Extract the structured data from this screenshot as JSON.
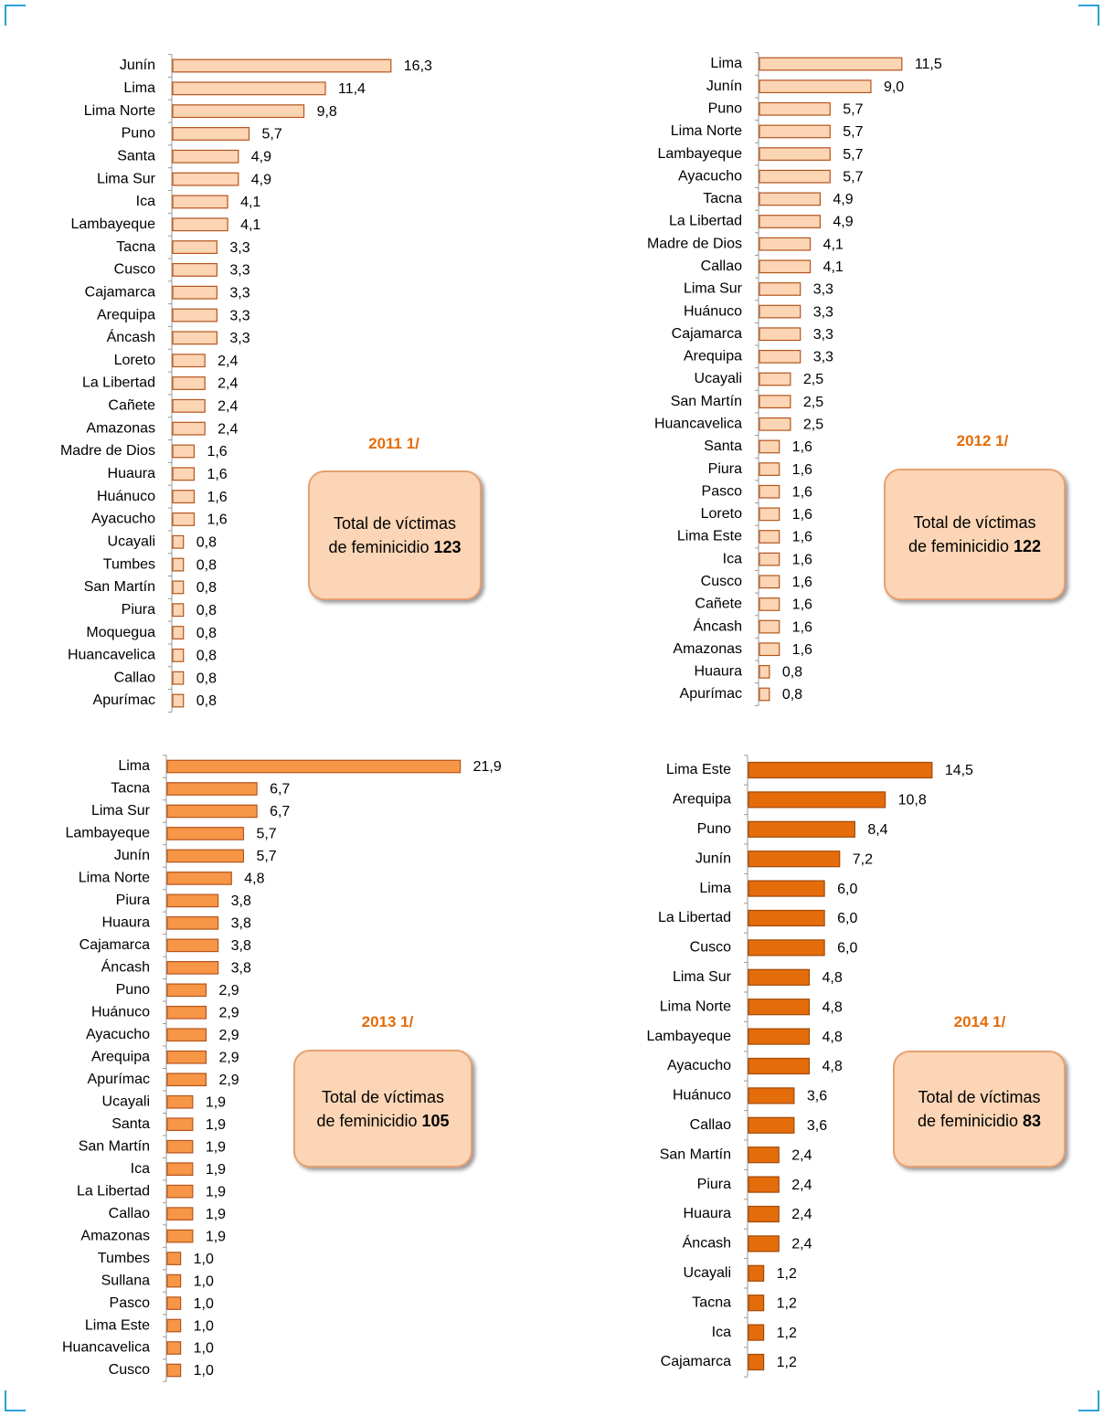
{
  "chart_data": [
    {
      "type": "bar",
      "subtitle": "2011 1/",
      "annotation": "Total de víctimas de feminicidio",
      "total": 123,
      "color": "#fcd5b4",
      "stroke": "#b5541c",
      "xlim": [
        0,
        20
      ],
      "categories": [
        "Junín",
        "Lima",
        "Lima Norte",
        "Puno",
        "Santa",
        "Lima Sur",
        "Ica",
        "Lambayeque",
        "Tacna",
        "Cusco",
        "Cajamarca",
        "Arequipa",
        "Áncash",
        "Loreto",
        "La Libertad",
        "Cañete",
        "Amazonas",
        "Madre de Dios",
        "Huaura",
        "Huánuco",
        "Ayacucho",
        "Ucayali",
        "Tumbes",
        "San Martín",
        "Piura",
        "Moquegua",
        "Huancavelica",
        "Callao",
        "Apurímac"
      ],
      "values": [
        16.3,
        11.4,
        9.8,
        5.7,
        4.9,
        4.9,
        4.1,
        4.1,
        3.3,
        3.3,
        3.3,
        3.3,
        3.3,
        2.4,
        2.4,
        2.4,
        2.4,
        1.6,
        1.6,
        1.6,
        1.6,
        0.8,
        0.8,
        0.8,
        0.8,
        0.8,
        0.8,
        0.8,
        0.8
      ],
      "value_labels": [
        "16,3",
        "11,4",
        "9,8",
        "5,7",
        "4,9",
        "4,9",
        "4,1",
        "4,1",
        "3,3",
        "3,3",
        "3,3",
        "3,3",
        "3,3",
        "2,4",
        "2,4",
        "2,4",
        "2,4",
        "1,6",
        "1,6",
        "1,6",
        "1,6",
        "0,8",
        "0,8",
        "0,8",
        "0,8",
        "0,8",
        "0,8",
        "0,8",
        "0,8"
      ]
    },
    {
      "type": "bar",
      "subtitle": "2012 1/",
      "annotation": "Total de víctimas de feminicidio",
      "total": 122,
      "color": "#fcd5b4",
      "stroke": "#b5541c",
      "xlim": [
        0,
        20
      ],
      "categories": [
        "Lima",
        "Junín",
        "Puno",
        "Lima Norte",
        "Lambayeque",
        "Ayacucho",
        "Tacna",
        "La Libertad",
        "Madre de Dios",
        "Callao",
        "Lima Sur",
        "Huánuco",
        "Cajamarca",
        "Arequipa",
        "Ucayali",
        "San Martín",
        "Huancavelica",
        "Santa",
        "Piura",
        "Pasco",
        "Loreto",
        "Lima Este",
        "Ica",
        "Cusco",
        "Cañete",
        "Áncash",
        "Amazonas",
        "Huaura",
        "Apurímac"
      ],
      "values": [
        11.5,
        9.0,
        5.7,
        5.7,
        5.7,
        5.7,
        4.9,
        4.9,
        4.1,
        4.1,
        3.3,
        3.3,
        3.3,
        3.3,
        2.5,
        2.5,
        2.5,
        1.6,
        1.6,
        1.6,
        1.6,
        1.6,
        1.6,
        1.6,
        1.6,
        1.6,
        1.6,
        0.8,
        0.8
      ],
      "value_labels": [
        "11,5",
        "9,0",
        "5,7",
        "5,7",
        "5,7",
        "5,7",
        "4,9",
        "4,9",
        "4,1",
        "4,1",
        "3,3",
        "3,3",
        "3,3",
        "3,3",
        "2,5",
        "2,5",
        "2,5",
        "1,6",
        "1,6",
        "1,6",
        "1,6",
        "1,6",
        "1,6",
        "1,6",
        "1,6",
        "1,6",
        "1,6",
        "0,8",
        "0,8"
      ]
    },
    {
      "type": "bar",
      "subtitle": "2013 1/",
      "annotation": "Total de víctimas de feminicidio",
      "total": 105,
      "color": "#f79646",
      "stroke": "#b5541c",
      "xlim": [
        0,
        25
      ],
      "categories": [
        "Lima",
        "Tacna",
        "Lima Sur",
        "Lambayeque",
        "Junín",
        "Lima Norte",
        "Piura",
        "Huaura",
        "Cajamarca",
        "Áncash",
        "Puno",
        "Huánuco",
        "Ayacucho",
        "Arequipa",
        "Apurímac",
        "Ucayali",
        "Santa",
        "San Martín",
        "Ica",
        "La Libertad",
        "Callao",
        "Amazonas",
        "Tumbes",
        "Sullana",
        "Pasco",
        "Lima Este",
        "Huancavelica",
        "Cusco"
      ],
      "values": [
        21.9,
        6.7,
        6.7,
        5.7,
        5.7,
        4.8,
        3.8,
        3.8,
        3.8,
        3.8,
        2.9,
        2.9,
        2.9,
        2.9,
        2.9,
        1.9,
        1.9,
        1.9,
        1.9,
        1.9,
        1.9,
        1.9,
        1.0,
        1.0,
        1.0,
        1.0,
        1.0,
        1.0
      ],
      "value_labels": [
        "21,9",
        "6,7",
        "6,7",
        "5,7",
        "5,7",
        "4,8",
        "3,8",
        "3,8",
        "3,8",
        "3,8",
        "2,9",
        "2,9",
        "2,9",
        "2,9",
        "2,9",
        "1,9",
        "1,9",
        "1,9",
        "1,9",
        "1,9",
        "1,9",
        "1,9",
        "1,0",
        "1,0",
        "1,0",
        "1,0",
        "1,0",
        "1,0"
      ]
    },
    {
      "type": "bar",
      "subtitle": "2014 1/",
      "annotation": "Total de víctimas de feminicidio",
      "total": 83,
      "color": "#e46c0a",
      "stroke": "#a04a08",
      "xlim": [
        0,
        20
      ],
      "categories": [
        "Lima Este",
        "Arequipa",
        "Puno",
        "Junín",
        "Lima",
        "La Libertad",
        "Cusco",
        "Lima Sur",
        "Lima Norte",
        "Lambayeque",
        "Ayacucho",
        "Huánuco",
        "Callao",
        "San Martín",
        "Piura",
        "Huaura",
        "Áncash",
        "Ucayali",
        "Tacna",
        "Ica",
        "Cajamarca"
      ],
      "values": [
        14.5,
        10.8,
        8.4,
        7.2,
        6.0,
        6.0,
        6.0,
        4.8,
        4.8,
        4.8,
        4.8,
        3.6,
        3.6,
        2.4,
        2.4,
        2.4,
        2.4,
        1.2,
        1.2,
        1.2,
        1.2
      ],
      "value_labels": [
        "14,5",
        "10,8",
        "8,4",
        "7,2",
        "6,0",
        "6,0",
        "6,0",
        "4,8",
        "4,8",
        "4,8",
        "4,8",
        "3,6",
        "3,6",
        "2,4",
        "2,4",
        "2,4",
        "2,4",
        "1,2",
        "1,2",
        "1,2",
        "1,2"
      ]
    }
  ]
}
